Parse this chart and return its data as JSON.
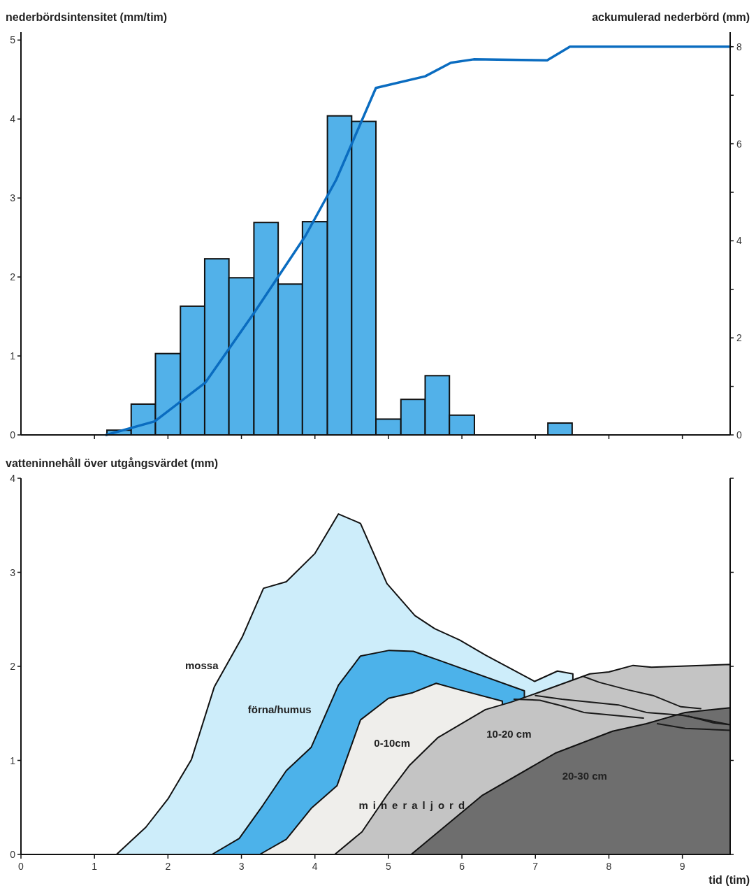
{
  "chart_data": [
    {
      "type": "histogram",
      "ylabel": "nederbördsintensitet (mm/tim)",
      "y2label": "ackumulerad nederbörd (mm)",
      "bins": [
        1.17,
        1.5,
        1.83,
        2.17,
        2.5,
        2.83,
        3.17,
        3.5,
        3.83,
        4.17,
        4.5,
        4.83,
        5.17,
        5.5,
        5.83,
        6.17,
        7.17,
        7.5
      ],
      "values": [
        0.06,
        0.39,
        1.03,
        1.63,
        2.23,
        1.99,
        2.69,
        1.91,
        2.7,
        4.04,
        3.97,
        0.2,
        0.45,
        0.75,
        0.25,
        0,
        0.15
      ],
      "color": "#52b1e9",
      "series": [
        {
          "type": "line",
          "axis": "y2",
          "color": "#0a6cc0",
          "x": [
            1.16,
            1.82,
            2.51,
            3.17,
            3.87,
            4.29,
            4.83,
            5.5,
            5.85,
            6.16,
            7.16,
            7.47,
            9.65
          ],
          "values": [
            0,
            0.28,
            1.08,
            2.51,
            4.1,
            5.26,
            7.15,
            7.39,
            7.67,
            7.74,
            7.72,
            8,
            8
          ]
        }
      ],
      "xlim": [
        0,
        9.65
      ],
      "xticks": [
        {
          "value": 1,
          "label": null
        },
        {
          "value": 2,
          "label": null
        },
        {
          "value": 3,
          "label": null
        },
        {
          "value": 4,
          "label": null
        },
        {
          "value": 5,
          "label": null
        },
        {
          "value": 6,
          "label": null
        },
        {
          "value": 7,
          "label": null
        },
        {
          "value": 8,
          "label": null
        },
        {
          "value": 9,
          "label": null
        }
      ],
      "ylim": [
        0,
        5.1
      ],
      "yticks": [
        0,
        1,
        2,
        3,
        4,
        5
      ],
      "y2lim": [
        0,
        8.3
      ],
      "y2ticks": [
        0,
        {
          "value": 1,
          "label": null
        },
        2,
        {
          "value": 3,
          "label": null
        },
        4,
        {
          "value": 5,
          "label": null
        },
        6,
        {
          "value": 7,
          "label": null
        },
        8
      ],
      "tick_labels": "y"
    },
    {
      "type": "area",
      "ylabel": "vatteninnehåll över utgångsvärdet (mm)",
      "xlabel": "tid (tim)",
      "series": [
        {
          "name": "mossa",
          "color": "#cdedfa",
          "x": [
            1.3,
            1.7,
            2.0,
            2.32,
            2.63,
            3.01,
            3.3,
            3.61,
            4.0,
            4.32,
            4.62,
            4.98,
            5.36,
            5.63,
            5.97,
            6.32,
            6.99,
            7.3,
            7.51
          ],
          "values": [
            0,
            0.29,
            0.59,
            1.01,
            1.78,
            2.31,
            2.83,
            2.9,
            3.2,
            3.62,
            3.52,
            2.88,
            2.54,
            2.4,
            2.28,
            2.12,
            1.84,
            1.95,
            1.92
          ]
        },
        {
          "name": "förna/humus",
          "color": "#4cb2ea",
          "x": [
            2.6,
            2.97,
            3.29,
            3.61,
            3.95,
            4.32,
            4.62,
            5.01,
            5.34,
            5.67,
            6.85
          ],
          "values": [
            0,
            0.17,
            0.52,
            0.89,
            1.14,
            1.8,
            2.11,
            2.17,
            2.16,
            2.07,
            1.74
          ]
        },
        {
          "name": "0-10cm",
          "color": "#efeeeb",
          "x": [
            3.25,
            3.61,
            3.95,
            4.3,
            4.62,
            5.0,
            5.33,
            5.65,
            5.97,
            6.55
          ],
          "values": [
            0,
            0.16,
            0.49,
            0.73,
            1.43,
            1.66,
            1.72,
            1.82,
            1.75,
            1.63
          ]
        },
        {
          "name": "10-20 cm",
          "color": "#c4c4c4",
          "x": [
            4.27,
            4.64,
            4.98,
            5.29,
            5.67,
            6.32,
            6.67,
            7.0,
            7.74,
            8.0,
            8.33,
            8.58,
            9.65
          ],
          "values": [
            0,
            0.24,
            0.63,
            0.95,
            1.24,
            1.54,
            1.62,
            1.71,
            1.92,
            1.94,
            2.01,
            1.99,
            2.02
          ]
        },
        {
          "name": "20-30 cm",
          "color": "#6e6e6e",
          "x": [
            5.31,
            6.28,
            7.28,
            8.05,
            8.51,
            9.04,
            9.65
          ],
          "values": [
            0,
            0.63,
            1.08,
            1.31,
            1.39,
            1.51,
            1.56
          ]
        },
        {
          "type": "line",
          "color": "#1a1a1a",
          "x": [
            7.0,
            7.36,
            8.13,
            8.51,
            9.0,
            9.65
          ],
          "values": [
            1.69,
            1.65,
            1.59,
            1.51,
            1.48,
            1.38
          ]
        },
        {
          "type": "line",
          "color": "#1a1a1a",
          "x": [
            6.71,
            7.06,
            7.36,
            7.66,
            8.47
          ],
          "values": [
            1.65,
            1.64,
            1.58,
            1.51,
            1.45
          ]
        },
        {
          "type": "line",
          "color": "#1a1a1a",
          "x": [
            7.66,
            7.87,
            8.26,
            8.6,
            8.98,
            9.25
          ],
          "values": [
            1.89,
            1.83,
            1.75,
            1.69,
            1.57,
            1.55
          ]
        },
        {
          "type": "line",
          "color": "#1a1a1a",
          "x": [
            8.66,
            9.04,
            9.65
          ],
          "values": [
            1.39,
            1.34,
            1.32
          ]
        },
        {
          "type": "line",
          "color": "#1a1a1a",
          "x": [
            9.08,
            9.42,
            9.65
          ],
          "values": [
            1.47,
            1.4,
            1.38
          ]
        }
      ],
      "annotations": [
        "mineraljord"
      ],
      "xlim": [
        0,
        9.65
      ],
      "xticks": [
        0,
        1,
        2,
        3,
        4,
        5,
        6,
        7,
        8,
        9
      ],
      "ylim": [
        0,
        4
      ],
      "yticks": [
        0,
        1,
        2,
        3,
        4
      ]
    }
  ]
}
